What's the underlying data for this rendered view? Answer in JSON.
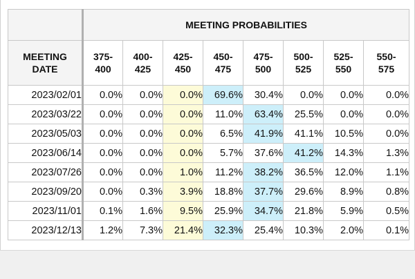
{
  "table": {
    "title": "MEETING PROBABILITIES",
    "date_header": [
      "MEETING",
      "DATE"
    ],
    "ranges": [
      [
        "375-",
        "400"
      ],
      [
        "400-",
        "425"
      ],
      [
        "425-",
        "450"
      ],
      [
        "450-",
        "475"
      ],
      [
        "475-",
        "500"
      ],
      [
        "500-",
        "525"
      ],
      [
        "525-",
        "550"
      ],
      [
        "550-",
        "575"
      ]
    ],
    "rows": [
      {
        "date": "2023/02/01",
        "values": [
          "0.0%",
          "0.0%",
          "0.0%",
          "69.6%",
          "30.4%",
          "0.0%",
          "0.0%",
          "0.0%"
        ],
        "highlight": [
          "",
          "",
          "yellow",
          "blue",
          "",
          "",
          "",
          ""
        ]
      },
      {
        "date": "2023/03/22",
        "values": [
          "0.0%",
          "0.0%",
          "0.0%",
          "11.0%",
          "63.4%",
          "25.5%",
          "0.0%",
          "0.0%"
        ],
        "highlight": [
          "",
          "",
          "yellow",
          "",
          "blue",
          "",
          "",
          ""
        ]
      },
      {
        "date": "2023/05/03",
        "values": [
          "0.0%",
          "0.0%",
          "0.0%",
          "6.5%",
          "41.9%",
          "41.1%",
          "10.5%",
          "0.0%"
        ],
        "highlight": [
          "",
          "",
          "yellow",
          "",
          "blue",
          "",
          "",
          ""
        ]
      },
      {
        "date": "2023/06/14",
        "values": [
          "0.0%",
          "0.0%",
          "0.0%",
          "5.7%",
          "37.6%",
          "41.2%",
          "14.3%",
          "1.3%"
        ],
        "highlight": [
          "",
          "",
          "yellow",
          "",
          "",
          "blue",
          "",
          ""
        ]
      },
      {
        "date": "2023/07/26",
        "values": [
          "0.0%",
          "0.0%",
          "1.0%",
          "11.2%",
          "38.2%",
          "36.5%",
          "12.0%",
          "1.1%"
        ],
        "highlight": [
          "",
          "",
          "yellow",
          "",
          "blue",
          "",
          "",
          ""
        ]
      },
      {
        "date": "2023/09/20",
        "values": [
          "0.0%",
          "0.3%",
          "3.9%",
          "18.8%",
          "37.7%",
          "29.6%",
          "8.9%",
          "0.8%"
        ],
        "highlight": [
          "",
          "",
          "yellow",
          "",
          "blue",
          "",
          "",
          ""
        ]
      },
      {
        "date": "2023/11/01",
        "values": [
          "0.1%",
          "1.6%",
          "9.5%",
          "25.9%",
          "34.7%",
          "21.8%",
          "5.9%",
          "0.5%"
        ],
        "highlight": [
          "",
          "",
          "yellow",
          "",
          "blue",
          "",
          "",
          ""
        ]
      },
      {
        "date": "2023/12/13",
        "values": [
          "1.2%",
          "7.3%",
          "21.4%",
          "32.3%",
          "25.4%",
          "10.3%",
          "2.0%",
          "0.1%"
        ],
        "highlight": [
          "",
          "",
          "yellow",
          "blue",
          "",
          "",
          "",
          ""
        ]
      }
    ]
  },
  "colors": {
    "yellow": "#fdfbd8",
    "blue": "#cdeffa"
  }
}
